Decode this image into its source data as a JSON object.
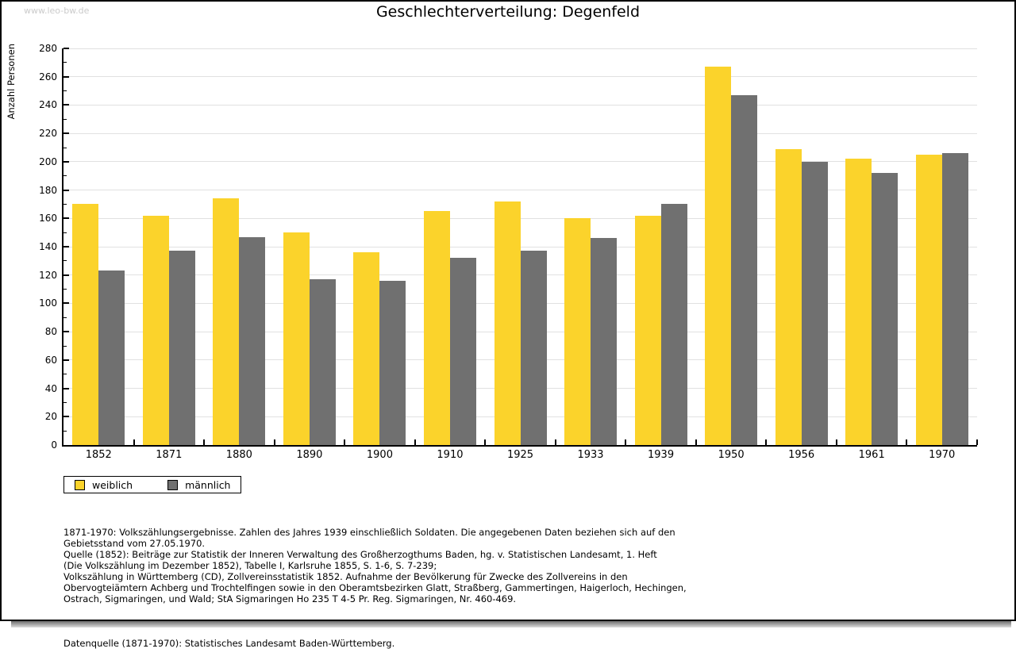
{
  "watermark": "www.leo-bw.de",
  "title": "Geschlechterverteilung: Degenfeld",
  "chart_data": {
    "type": "bar",
    "title": "Geschlechterverteilung: Degenfeld",
    "xlabel": "",
    "ylabel": "Anzahl Personen",
    "ylim": [
      0,
      280
    ],
    "ytick_step": 20,
    "ytick_minor_step": 10,
    "grid": "horizontal",
    "legend_position": "bottom-left",
    "categories": [
      "1852",
      "1871",
      "1880",
      "1890",
      "1900",
      "1910",
      "1925",
      "1933",
      "1939",
      "1950",
      "1956",
      "1961",
      "1970"
    ],
    "series": [
      {
        "name": "weiblich",
        "color": "#fbd32b",
        "values": [
          170,
          162,
          174,
          150,
          136,
          165,
          172,
          160,
          162,
          267,
          209,
          202,
          205
        ]
      },
      {
        "name": "männlich",
        "color": "#707070",
        "values": [
          123,
          137,
          147,
          117,
          116,
          132,
          137,
          146,
          170,
          247,
          200,
          192,
          206
        ]
      }
    ]
  },
  "notes": {
    "lines": [
      "1871-1970: Volkszählungsergebnisse. Zahlen des Jahres 1939 einschließlich Soldaten. Die angegebenen Daten beziehen sich auf den",
      "Gebietsstand vom 27.05.1970.",
      "Quelle (1852): Beiträge zur Statistik der Inneren Verwaltung des Großherzogthums Baden, hg. v. Statistischen Landesamt, 1. Heft",
      "(Die Volkszählung im Dezember 1852), Tabelle I, Karlsruhe 1855, S. 1-6, S. 7-239;",
      "Volkszählung in Württemberg (CD), Zollvereinsstatistik 1852. Aufnahme der Bevölkerung für Zwecke des Zollvereins in den",
      "Obervogteiämtern Achberg und Trochtelfingen sowie in den Oberamtsbezirken Glatt, Straßberg, Gammertingen, Haigerloch, Hechingen,",
      "Ostrach, Sigmaringen, und Wald; StA Sigmaringen Ho 235 T 4-5 Pr. Reg. Sigmaringen, Nr. 460-469."
    ],
    "source": "Datenquelle (1871-1970): Statistisches Landesamt Baden-Württemberg."
  }
}
